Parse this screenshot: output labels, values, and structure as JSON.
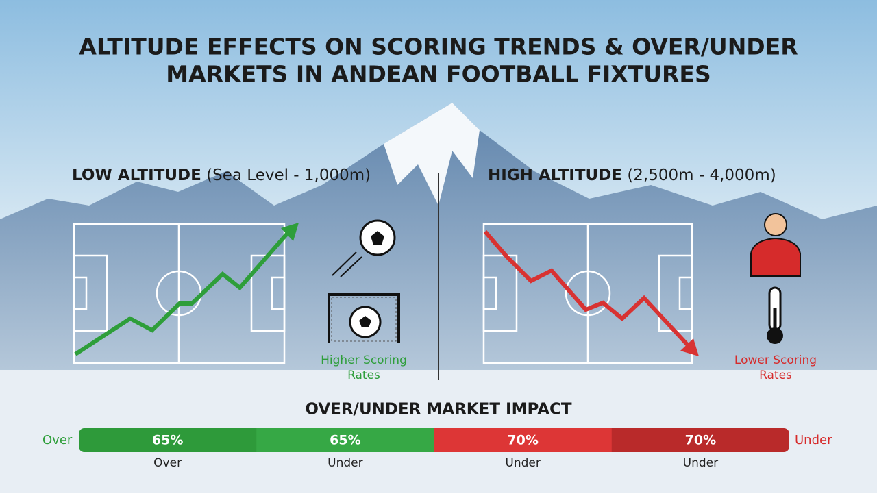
{
  "title_lines": [
    "ALTITUDE EFFECTS ON SCORING TRENDS & OVER/UNDER",
    "MARKETS IN ANDEAN FOOTBALL FIXTURES"
  ],
  "low": {
    "heading": "LOW ALTITUDE",
    "range": "(Sea Level - 1,000m)",
    "caption_lines": [
      "Higher Scoring",
      "Rates"
    ]
  },
  "high": {
    "heading": "HIGH ALTITUDE",
    "range": "(2,500m - 4,000m)",
    "caption_lines": [
      "Lower Scoring",
      "Rates"
    ]
  },
  "market": {
    "title": "OVER/UNDER MARKET IMPACT",
    "left_label": "Over",
    "right_label": "Under",
    "segments": [
      {
        "label": "65%",
        "caption": "Over",
        "color": "#2e9a3a"
      },
      {
        "label": "65%",
        "caption": "Under",
        "color": "#36a845"
      },
      {
        "label": "70%",
        "caption": "Under",
        "color": "#dd3636"
      },
      {
        "label": "70%",
        "caption": "Under",
        "color": "#b92a2a"
      }
    ]
  }
}
